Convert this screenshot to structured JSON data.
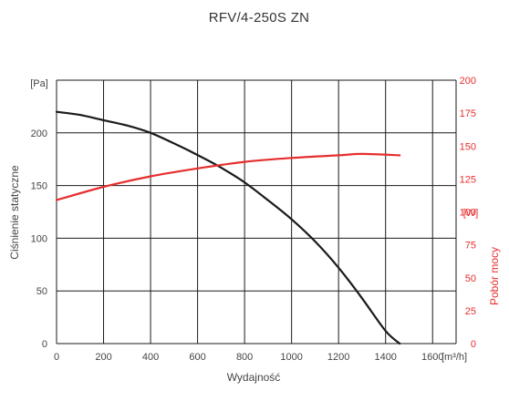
{
  "chart_data": {
    "type": "line",
    "title": "RFV/4-250S ZN",
    "xlabel": "Wydajność",
    "x_unit": "[m³/h]",
    "ylabel_left": "Ciśnienie statyczne",
    "y_unit_left": "[Pa]",
    "ylabel_right": "Pobór mocy",
    "y_unit_right": "[W]",
    "xlim": [
      0,
      1700
    ],
    "ylim_left": [
      0,
      250
    ],
    "ylim_right": [
      0,
      200
    ],
    "x_ticks": [
      0,
      200,
      400,
      600,
      800,
      1000,
      1200,
      1400,
      1600
    ],
    "y_ticks_left": [
      0,
      50,
      100,
      150,
      200
    ],
    "y_ticks_right": [
      0,
      25,
      50,
      75,
      100,
      125,
      150,
      175,
      200
    ],
    "grid": true,
    "series": [
      {
        "axis": "left",
        "color": "#1a1a1a",
        "x": [
          0,
          100,
          200,
          300,
          400,
          500,
          600,
          700,
          800,
          900,
          1000,
          1100,
          1200,
          1300,
          1400,
          1460
        ],
        "values": [
          220,
          217,
          212,
          207,
          200,
          190,
          179,
          167,
          153,
          136,
          118,
          97,
          72,
          43,
          12,
          0
        ]
      },
      {
        "axis": "right",
        "color": "#e62e2e",
        "x": [
          0,
          200,
          400,
          600,
          800,
          1000,
          1200,
          1300,
          1460
        ],
        "values": [
          109,
          119,
          127,
          133,
          138,
          141,
          143,
          144,
          143
        ]
      }
    ]
  }
}
